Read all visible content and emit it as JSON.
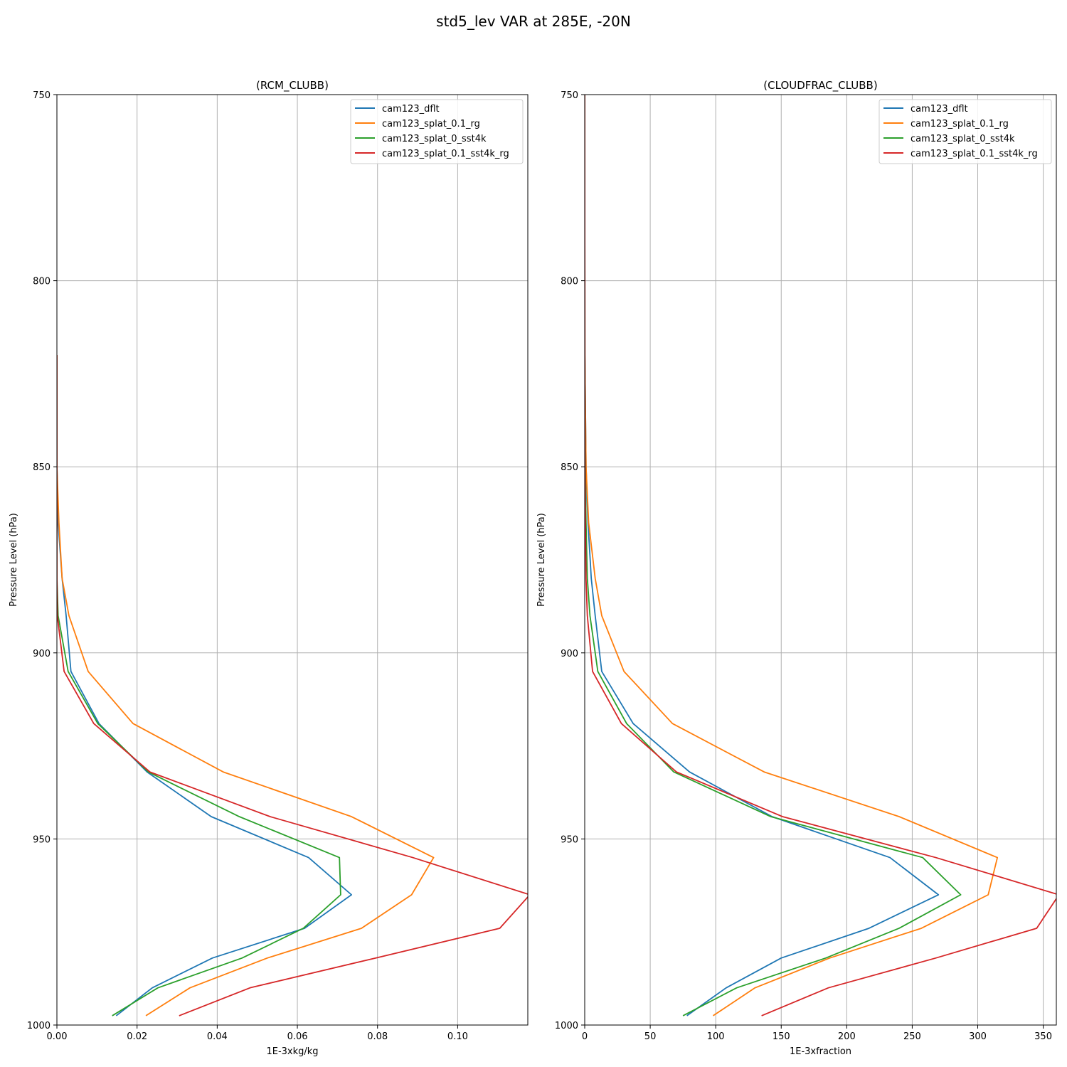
{
  "suptitle": "std5_lev VAR at 285E, -20N",
  "chart_data": [
    {
      "type": "line",
      "title": "(RCM_CLUBB)",
      "xlabel": "1E-3xkg/kg",
      "ylabel": "Pressure Level (hPa)",
      "xlim": [
        0,
        0.1175
      ],
      "ylim": [
        1000,
        750
      ],
      "xticks": [
        0,
        0.02,
        0.04,
        0.06,
        0.08,
        0.1
      ],
      "xticklabels": [
        "0.00",
        "0.02",
        "0.04",
        "0.06",
        "0.08",
        "0.10"
      ],
      "yticks": [
        750,
        800,
        850,
        900,
        950,
        1000
      ],
      "yticklabels": [
        "750",
        "800",
        "850",
        "900",
        "950",
        "1000"
      ],
      "grid": true,
      "legend_loc": "upper right",
      "levels": [
        820,
        850,
        865,
        880,
        890,
        905,
        919,
        932,
        944,
        955,
        965,
        974,
        982,
        990,
        997.5
      ],
      "series": [
        {
          "name": "cam123_dflt",
          "color": "#1f77b4",
          "values": [
            0,
            0,
            0.0003,
            0.0013,
            0.0023,
            0.0035,
            0.0105,
            0.0225,
            0.0385,
            0.0628,
            0.0735,
            0.0618,
            0.0388,
            0.0238,
            0.0148
          ]
        },
        {
          "name": "cam123_splat_0.1_rg",
          "color": "#ff7f0e",
          "values": [
            0,
            0,
            0.0005,
            0.0013,
            0.003,
            0.0078,
            0.019,
            0.0415,
            0.0735,
            0.094,
            0.0885,
            0.076,
            0.0525,
            0.0332,
            0.0222
          ]
        },
        {
          "name": "cam123_splat_0_sst4k",
          "color": "#2ca02c",
          "values": [
            0,
            0,
            0,
            0,
            0.0003,
            0.0028,
            0.0102,
            0.0228,
            0.0455,
            0.0705,
            0.0708,
            0.0615,
            0.0462,
            0.0252,
            0.0138
          ]
        },
        {
          "name": "cam123_splat_0.1_sst4k_rg",
          "color": "#d62728",
          "values": [
            0,
            0,
            0,
            0,
            0.0001,
            0.0018,
            0.0092,
            0.0232,
            0.0532,
            0.0888,
            0.118,
            0.1105,
            0.0795,
            0.0482,
            0.0305
          ]
        }
      ]
    },
    {
      "type": "line",
      "title": "(CLOUDFRAC_CLUBB)",
      "xlabel": "1E-3xfraction",
      "ylabel": "Pressure Level (hPa)",
      "xlim": [
        0,
        360
      ],
      "ylim": [
        1000,
        750
      ],
      "xticks": [
        0,
        50,
        100,
        150,
        200,
        250,
        300,
        350
      ],
      "xticklabels": [
        "0",
        "50",
        "100",
        "150",
        "200",
        "250",
        "300",
        "350"
      ],
      "yticks": [
        750,
        800,
        850,
        900,
        950,
        1000
      ],
      "yticklabels": [
        "750",
        "800",
        "850",
        "900",
        "950",
        "1000"
      ],
      "grid": true,
      "legend_loc": "upper right",
      "levels": [
        750,
        820,
        850,
        865,
        880,
        890,
        905,
        919,
        932,
        944,
        955,
        965,
        974,
        982,
        990,
        997.5
      ],
      "series": [
        {
          "name": "cam123_dflt",
          "color": "#1f77b4",
          "values": [
            0,
            0.1,
            1,
            2.5,
            5,
            8,
            13,
            37,
            80,
            143,
            233,
            270,
            217,
            150,
            108,
            78
          ]
        },
        {
          "name": "cam123_splat_0.1_rg",
          "color": "#ff7f0e",
          "values": [
            0,
            0.1,
            1,
            3,
            8,
            13,
            30,
            67,
            137,
            240,
            315,
            308,
            257,
            187,
            130,
            98
          ]
        },
        {
          "name": "cam123_splat_0_sst4k",
          "color": "#2ca02c",
          "values": [
            0,
            0.1,
            0.5,
            1,
            2,
            4,
            10,
            32,
            68,
            142,
            258,
            287,
            240,
            184,
            116,
            75
          ]
        },
        {
          "name": "cam123_splat_0.1_sst4k_rg",
          "color": "#d62728",
          "values": [
            0,
            0.1,
            0.3,
            0.5,
            1,
            2,
            6,
            28,
            70,
            151,
            268,
            362,
            345,
            268,
            186,
            135
          ]
        }
      ]
    }
  ]
}
